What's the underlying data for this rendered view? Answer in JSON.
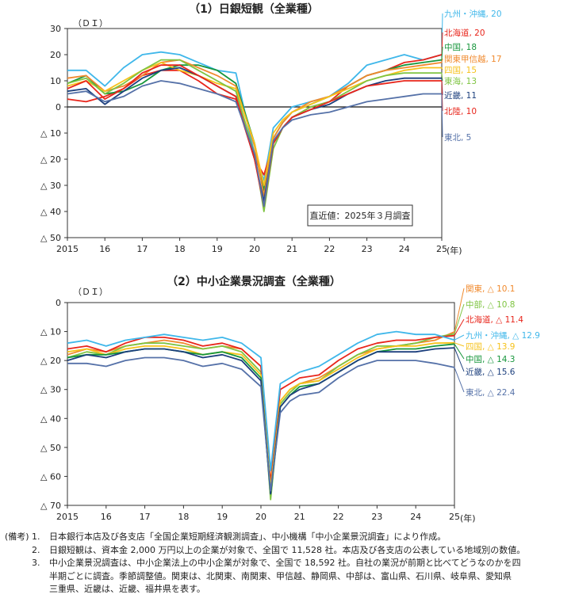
{
  "chart_data": [
    {
      "type": "line",
      "title": "（1）日銀短観（全業種）",
      "ylabel": "（ＤＩ）",
      "xlabel": "(年)",
      "ylim": [
        -50,
        30
      ],
      "ytick_values": [
        30,
        20,
        10,
        0,
        -10,
        -20,
        -30,
        -40,
        -50
      ],
      "ytick_labels": [
        "30",
        "20",
        "10",
        "0",
        "△ 10",
        "△ 20",
        "△ 30",
        "△ 40",
        "△ 50"
      ],
      "x_tick_labels": [
        "2015",
        "16",
        "17",
        "18",
        "19",
        "20",
        "21",
        "22",
        "23",
        "24",
        "25"
      ],
      "x_range": [
        2015,
        2025
      ],
      "annotation": "直近値：2025年３月調査",
      "series": [
        {
          "name": "九州・沖縄",
          "end_label": "九州・沖縄, 20",
          "color": "#3fb7ea",
          "x": [
            2015,
            2015.5,
            2016,
            2016.5,
            2017,
            2017.5,
            2018,
            2018.5,
            2019,
            2019.5,
            2020,
            2020.25,
            2020.5,
            2020.75,
            2021,
            2021.5,
            2022,
            2022.5,
            2023,
            2023.5,
            2024,
            2024.5,
            2025
          ],
          "values": [
            14,
            14,
            8,
            15,
            20,
            21,
            20,
            17,
            14,
            13,
            -18,
            -28,
            -8,
            -4,
            0,
            2,
            4,
            9,
            16,
            18,
            20,
            18,
            20
          ]
        },
        {
          "name": "北海道",
          "end_label": "北海道, 20",
          "color": "#e8251b",
          "x": [
            2015,
            2015.5,
            2016,
            2016.5,
            2017,
            2017.5,
            2018,
            2018.5,
            2019,
            2019.5,
            2020,
            2020.25,
            2020.5,
            2020.75,
            2021,
            2021.5,
            2022,
            2022.5,
            2023,
            2023.5,
            2024,
            2024.5,
            2025
          ],
          "values": [
            3,
            2,
            4,
            7,
            12,
            14,
            14,
            10,
            5,
            3,
            -20,
            -26,
            -14,
            -8,
            -4,
            0,
            2,
            8,
            12,
            14,
            17,
            18,
            20
          ]
        },
        {
          "name": "中国",
          "end_label": "中国, 18",
          "color": "#17963c",
          "x": [
            2015,
            2015.5,
            2016,
            2016.5,
            2017,
            2017.5,
            2018,
            2018.5,
            2019,
            2019.5,
            2020,
            2020.25,
            2020.5,
            2020.75,
            2021,
            2021.5,
            2022,
            2022.5,
            2023,
            2023.5,
            2024,
            2024.5,
            2025
          ],
          "values": [
            9,
            12,
            5,
            6,
            9,
            14,
            16,
            16,
            14,
            9,
            -14,
            -32,
            -12,
            -6,
            -2,
            1,
            4,
            8,
            12,
            14,
            16,
            17,
            18
          ]
        },
        {
          "name": "関東甲信越",
          "end_label": "関東甲信越, 17",
          "color": "#f08a2e",
          "x": [
            2015,
            2015.5,
            2016,
            2016.5,
            2017,
            2017.5,
            2018,
            2018.5,
            2019,
            2019.5,
            2020,
            2020.25,
            2020.5,
            2020.75,
            2021,
            2021.5,
            2022,
            2022.5,
            2023,
            2023.5,
            2024,
            2024.5,
            2025
          ],
          "values": [
            11,
            12,
            6,
            8,
            12,
            17,
            18,
            15,
            12,
            8,
            -15,
            -34,
            -12,
            -6,
            -2,
            2,
            4,
            8,
            12,
            14,
            15,
            16,
            17
          ]
        },
        {
          "name": "四国",
          "end_label": "四国, 15",
          "color": "#f6c21c",
          "x": [
            2015,
            2015.5,
            2016,
            2016.5,
            2017,
            2017.5,
            2018,
            2018.5,
            2019,
            2019.5,
            2020,
            2020.25,
            2020.5,
            2020.75,
            2021,
            2021.5,
            2022,
            2022.5,
            2023,
            2023.5,
            2024,
            2024.5,
            2025
          ],
          "values": [
            8,
            10,
            6,
            10,
            14,
            17,
            14,
            12,
            9,
            7,
            -14,
            -30,
            -10,
            -5,
            -2,
            1,
            4,
            7,
            10,
            12,
            14,
            15,
            15
          ]
        },
        {
          "name": "東海",
          "end_label": "東海, 13",
          "color": "#7fc442",
          "x": [
            2015,
            2015.5,
            2016,
            2016.5,
            2017,
            2017.5,
            2018,
            2018.5,
            2019,
            2019.5,
            2020,
            2020.25,
            2020.5,
            2020.75,
            2021,
            2021.5,
            2022,
            2022.5,
            2023,
            2023.5,
            2024,
            2024.5,
            2025
          ],
          "values": [
            9,
            11,
            5,
            9,
            14,
            18,
            18,
            14,
            10,
            6,
            -18,
            -40,
            -16,
            -8,
            -4,
            0,
            2,
            6,
            10,
            12,
            13,
            13,
            13
          ]
        },
        {
          "name": "近畿",
          "end_label": "近畿, 11",
          "color": "#1c3f7d",
          "x": [
            2015,
            2015.5,
            2016,
            2016.5,
            2017,
            2017.5,
            2018,
            2018.5,
            2019,
            2019.5,
            2020,
            2020.25,
            2020.5,
            2020.75,
            2021,
            2021.5,
            2022,
            2022.5,
            2023,
            2023.5,
            2024,
            2024.5,
            2025
          ],
          "values": [
            6,
            7,
            1,
            6,
            11,
            14,
            15,
            12,
            8,
            4,
            -20,
            -36,
            -14,
            -8,
            -4,
            -1,
            1,
            5,
            8,
            10,
            11,
            11,
            11
          ]
        },
        {
          "name": "北陸",
          "end_label": "北陸, 10",
          "color": "#e8251b",
          "x": [
            2015,
            2015.5,
            2016,
            2016.5,
            2017,
            2017.5,
            2018,
            2018.5,
            2019,
            2019.5,
            2020,
            2020.25,
            2020.5,
            2020.75,
            2021,
            2021.5,
            2022,
            2022.5,
            2023,
            2023.5,
            2024,
            2024.5,
            2025
          ],
          "values": [
            7,
            10,
            3,
            7,
            13,
            16,
            16,
            12,
            8,
            4,
            -20,
            -38,
            -14,
            -8,
            -4,
            -1,
            2,
            5,
            8,
            9,
            10,
            10,
            10
          ]
        },
        {
          "name": "東北",
          "end_label": "東北, 5",
          "color": "#5571a8",
          "x": [
            2015,
            2015.5,
            2016,
            2016.5,
            2017,
            2017.5,
            2018,
            2018.5,
            2019,
            2019.5,
            2020,
            2020.25,
            2020.5,
            2020.75,
            2021,
            2021.5,
            2022,
            2022.5,
            2023,
            2023.5,
            2024,
            2024.5,
            2025
          ],
          "values": [
            5,
            6,
            2,
            4,
            8,
            10,
            9,
            7,
            5,
            2,
            -18,
            -38,
            -13,
            -8,
            -5,
            -3,
            -2,
            0,
            2,
            3,
            4,
            5,
            5
          ]
        }
      ]
    },
    {
      "type": "line",
      "title": "（2）中小企業景況調査（全業種）",
      "ylabel": "（ＤＩ）",
      "xlabel": "(年)",
      "ylim": [
        -70,
        0
      ],
      "ytick_values": [
        0,
        -10,
        -20,
        -30,
        -40,
        -50,
        -60,
        -70
      ],
      "ytick_labels": [
        "0",
        "△ 10",
        "△ 20",
        "△ 30",
        "△ 40",
        "△ 50",
        "△ 60",
        "△ 70"
      ],
      "x_tick_labels": [
        "2015",
        "16",
        "17",
        "18",
        "19",
        "20",
        "21",
        "22",
        "23",
        "24",
        "25"
      ],
      "x_range": [
        2015,
        2025
      ],
      "series": [
        {
          "name": "関東",
          "end_label": "関東, △ 10.1",
          "color": "#f08a2e",
          "x": [
            2015,
            2015.5,
            2016,
            2016.5,
            2017,
            2017.5,
            2018,
            2018.5,
            2019,
            2019.5,
            2020,
            2020.25,
            2020.5,
            2020.75,
            2021,
            2021.5,
            2022,
            2022.5,
            2023,
            2023.5,
            2024,
            2024.5,
            2025
          ],
          "values": [
            -18,
            -16,
            -17,
            -15,
            -14,
            -13,
            -14,
            -16,
            -15,
            -16,
            -22,
            -64,
            -34,
            -30,
            -28,
            -26,
            -22,
            -18,
            -16,
            -15,
            -14,
            -13,
            -10.1
          ]
        },
        {
          "name": "中部",
          "end_label": "中部, △ 10.8",
          "color": "#7fc442",
          "x": [
            2015,
            2015.5,
            2016,
            2016.5,
            2017,
            2017.5,
            2018,
            2018.5,
            2019,
            2019.5,
            2020,
            2020.25,
            2020.5,
            2020.75,
            2021,
            2021.5,
            2022,
            2022.5,
            2023,
            2023.5,
            2024,
            2024.5,
            2025
          ],
          "values": [
            -19,
            -17,
            -18,
            -15,
            -14,
            -14,
            -15,
            -16,
            -15,
            -17,
            -24,
            -68,
            -35,
            -31,
            -28,
            -27,
            -22,
            -18,
            -15,
            -15,
            -14,
            -12,
            -10.8
          ]
        },
        {
          "name": "北海道",
          "end_label": "北海道, △ 11.4",
          "color": "#e8251b",
          "x": [
            2015,
            2015.5,
            2016,
            2016.5,
            2017,
            2017.5,
            2018,
            2018.5,
            2019,
            2019.5,
            2020,
            2020.25,
            2020.5,
            2020.75,
            2021,
            2021.5,
            2022,
            2022.5,
            2023,
            2023.5,
            2024,
            2024.5,
            2025
          ],
          "values": [
            -16,
            -15,
            -17,
            -14,
            -12,
            -12,
            -13,
            -15,
            -14,
            -16,
            -22,
            -62,
            -30,
            -28,
            -26,
            -25,
            -20,
            -16,
            -14,
            -13,
            -13,
            -12,
            -11.4
          ]
        },
        {
          "name": "九州・沖縄",
          "end_label": "九州・沖縄, △ 12.9",
          "color": "#3fb7ea",
          "x": [
            2015,
            2015.5,
            2016,
            2016.5,
            2017,
            2017.5,
            2018,
            2018.5,
            2019,
            2019.5,
            2020,
            2020.25,
            2020.5,
            2020.75,
            2021,
            2021.5,
            2022,
            2022.5,
            2023,
            2023.5,
            2024,
            2024.5,
            2025
          ],
          "values": [
            -14,
            -13,
            -15,
            -13,
            -12,
            -11,
            -12,
            -13,
            -12,
            -14,
            -19,
            -58,
            -28,
            -26,
            -24,
            -22,
            -18,
            -14,
            -11,
            -10,
            -11,
            -11,
            -12.9
          ]
        },
        {
          "name": "四国",
          "end_label": "四国, △ 13.9",
          "color": "#f6c21c",
          "x": [
            2015,
            2015.5,
            2016,
            2016.5,
            2017,
            2017.5,
            2018,
            2018.5,
            2019,
            2019.5,
            2020,
            2020.25,
            2020.5,
            2020.75,
            2021,
            2021.5,
            2022,
            2022.5,
            2023,
            2023.5,
            2024,
            2024.5,
            2025
          ],
          "values": [
            -17,
            -16,
            -18,
            -16,
            -15,
            -15,
            -16,
            -18,
            -17,
            -18,
            -25,
            -64,
            -34,
            -30,
            -28,
            -27,
            -23,
            -19,
            -16,
            -15,
            -15,
            -14,
            -13.9
          ]
        },
        {
          "name": "中国",
          "end_label": "中国, △ 14.3",
          "color": "#17963c",
          "x": [
            2015,
            2015.5,
            2016,
            2016.5,
            2017,
            2017.5,
            2018,
            2018.5,
            2019,
            2019.5,
            2020,
            2020.25,
            2020.5,
            2020.75,
            2021,
            2021.5,
            2022,
            2022.5,
            2023,
            2023.5,
            2024,
            2024.5,
            2025
          ],
          "values": [
            -19,
            -18,
            -18,
            -17,
            -16,
            -16,
            -17,
            -18,
            -17,
            -19,
            -26,
            -66,
            -36,
            -32,
            -29,
            -28,
            -24,
            -20,
            -17,
            -16,
            -16,
            -15,
            -14.3
          ]
        },
        {
          "name": "近畿",
          "end_label": "近畿, △ 15.6",
          "color": "#1c3f7d",
          "x": [
            2015,
            2015.5,
            2016,
            2016.5,
            2017,
            2017.5,
            2018,
            2018.5,
            2019,
            2019.5,
            2020,
            2020.25,
            2020.5,
            2020.75,
            2021,
            2021.5,
            2022,
            2022.5,
            2023,
            2023.5,
            2024,
            2024.5,
            2025
          ],
          "values": [
            -20,
            -18,
            -19,
            -17,
            -16,
            -16,
            -17,
            -19,
            -18,
            -20,
            -27,
            -66,
            -36,
            -32,
            -30,
            -28,
            -24,
            -20,
            -17,
            -17,
            -17,
            -16,
            -15.6
          ]
        },
        {
          "name": "東北",
          "end_label": "東北, △ 22.4",
          "color": "#5571a8",
          "x": [
            2015,
            2015.5,
            2016,
            2016.5,
            2017,
            2017.5,
            2018,
            2018.5,
            2019,
            2019.5,
            2020,
            2020.25,
            2020.5,
            2020.75,
            2021,
            2021.5,
            2022,
            2022.5,
            2023,
            2023.5,
            2024,
            2024.5,
            2025
          ],
          "values": [
            -21,
            -21,
            -22,
            -20,
            -19,
            -19,
            -20,
            -22,
            -21,
            -23,
            -29,
            -65,
            -38,
            -34,
            -32,
            -31,
            -26,
            -22,
            -20,
            -20,
            -20,
            -21,
            -22.4
          ]
        }
      ]
    }
  ],
  "notes": {
    "tag": "(備考)",
    "items": [
      {
        "num": "1.",
        "lines": [
          "日本銀行本店及び各支店「全国企業短期経済観測調査」、中小機構「中小企業景況調査」により作成。"
        ]
      },
      {
        "num": "2.",
        "lines": [
          "日銀短観は、資本金 2,000 万円以上の企業が対象で、全国で 11,528 社。本店及び各支店の公表している地域別の数値。"
        ]
      },
      {
        "num": "3.",
        "lines": [
          "中小企業景況調査は、中小企業法上の中小企業が対象で、全国で 18,592 社。自社の業況が前期と比べてどうなのかを四",
          "半期ごとに調査。季節調整値。関東は、北関東、南関東、甲信越、静岡県、中部は、富山県、石川県、岐阜県、愛知県",
          "三重県、近畿は、近畿、福井県を表す。"
        ]
      }
    ]
  }
}
